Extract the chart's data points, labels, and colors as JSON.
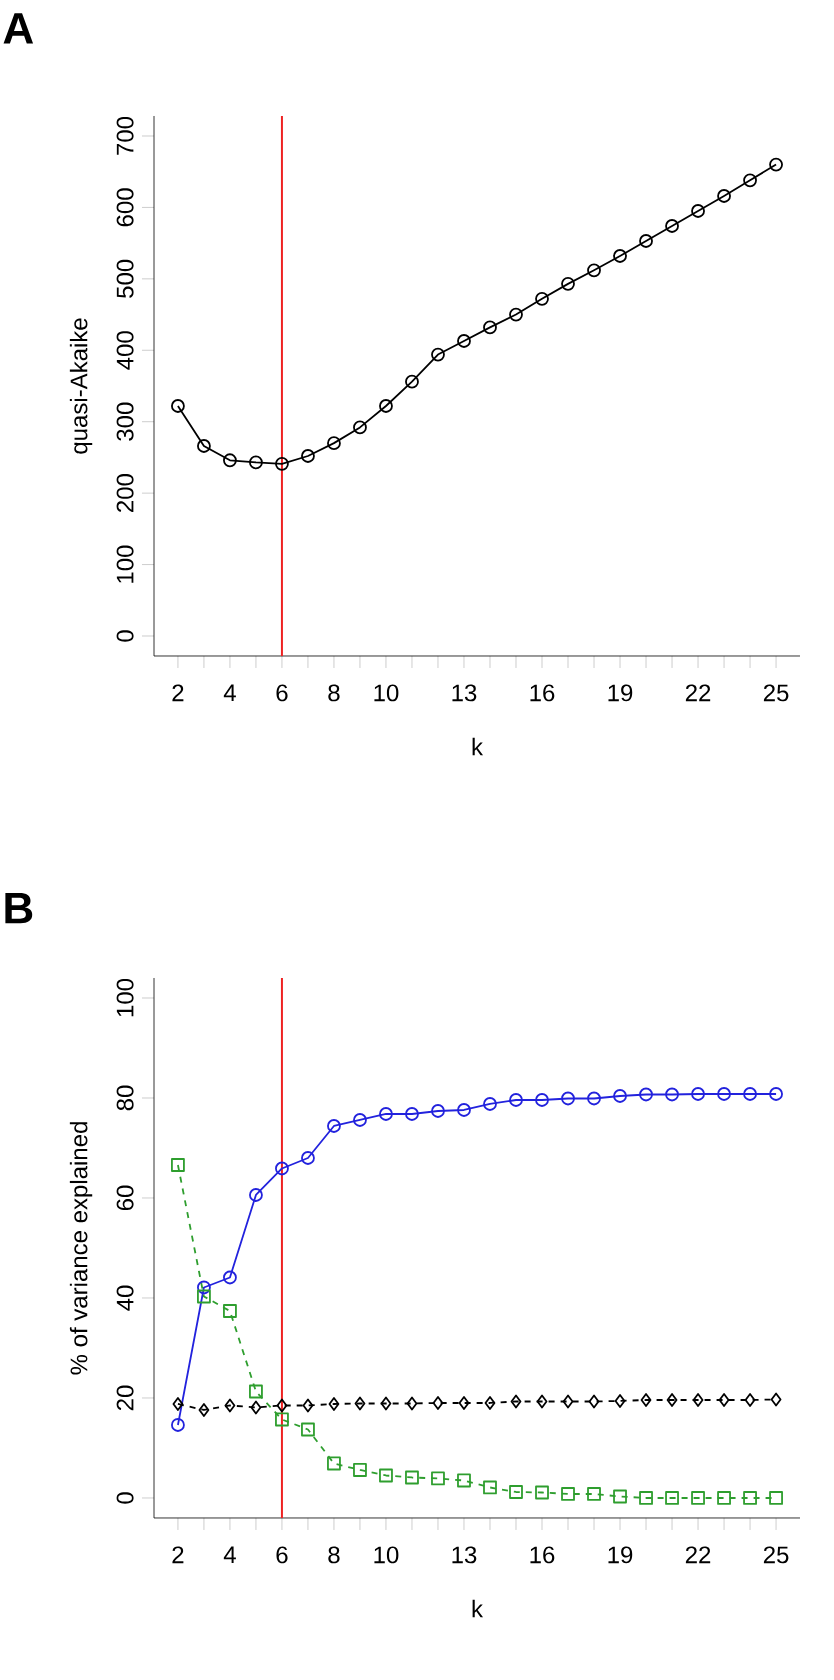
{
  "chart_data": [
    {
      "type": "line",
      "title": "A",
      "xlabel": "k",
      "ylabel": "quasi-Akaike",
      "x": [
        2,
        3,
        4,
        5,
        6,
        7,
        8,
        9,
        10,
        11,
        12,
        13,
        14,
        15,
        16,
        17,
        18,
        19,
        20,
        21,
        22,
        23,
        24,
        25
      ],
      "series": [
        {
          "color": "#000000",
          "marker": "circle",
          "line_style": "solid",
          "values": [
            322,
            266,
            246,
            243,
            241,
            252,
            270,
            292,
            322,
            356,
            394,
            413,
            432,
            450,
            472,
            493,
            512,
            532,
            553,
            574,
            595,
            616,
            638,
            660
          ]
        }
      ],
      "xlim": [
        1.08,
        25.92
      ],
      "ylim": [
        -28,
        728
      ],
      "xticks": [
        2,
        {
          "value": 3,
          "label": null
        },
        4,
        {
          "value": 5,
          "label": null
        },
        6,
        {
          "value": 7,
          "label": null
        },
        8,
        {
          "value": 9,
          "label": null
        },
        10,
        {
          "value": 11,
          "label": null
        },
        {
          "value": 12,
          "label": null
        },
        13,
        {
          "value": 14,
          "label": null
        },
        {
          "value": 15,
          "label": null
        },
        16,
        {
          "value": 17,
          "label": null
        },
        {
          "value": 18,
          "label": null
        },
        19,
        {
          "value": 20,
          "label": null
        },
        {
          "value": 21,
          "label": null
        },
        22,
        {
          "value": 23,
          "label": null
        },
        {
          "value": 24,
          "label": null
        },
        25
      ],
      "yticks": [
        0,
        100,
        200,
        300,
        400,
        500,
        600,
        700
      ],
      "ref_lines": [
        {
          "axis": "x",
          "value": 6,
          "color": "#ee2222"
        }
      ]
    },
    {
      "type": "line",
      "title": "B",
      "xlabel": "k",
      "ylabel": "% of variance explained",
      "x": [
        2,
        3,
        4,
        5,
        6,
        7,
        8,
        9,
        10,
        11,
        12,
        13,
        14,
        15,
        16,
        17,
        18,
        19,
        20,
        21,
        22,
        23,
        24,
        25
      ],
      "series": [
        {
          "color": "#2222dd",
          "marker": "circle",
          "line_style": "solid",
          "values": [
            14.6,
            42.1,
            44.1,
            60.6,
            65.9,
            68.0,
            74.4,
            75.6,
            76.8,
            76.8,
            77.4,
            77.6,
            78.8,
            79.6,
            79.6,
            79.9,
            79.9,
            80.4,
            80.7,
            80.7,
            80.8,
            80.8,
            80.8,
            80.8
          ]
        },
        {
          "color": "#000000",
          "marker": "diamond",
          "line_style": "dashed",
          "values": [
            18.8,
            17.6,
            18.5,
            18.1,
            18.5,
            18.5,
            18.8,
            18.9,
            18.9,
            18.9,
            19.0,
            19.0,
            19.0,
            19.3,
            19.3,
            19.3,
            19.3,
            19.4,
            19.6,
            19.6,
            19.6,
            19.6,
            19.6,
            19.7
          ]
        },
        {
          "color": "#2e9e2e",
          "marker": "square",
          "line_style": "dashed",
          "values": [
            66.6,
            40.3,
            37.4,
            21.3,
            15.7,
            13.7,
            6.9,
            5.6,
            4.5,
            4.1,
            3.9,
            3.5,
            2.1,
            1.2,
            1.1,
            0.8,
            0.8,
            0.3,
            0,
            0,
            0,
            0,
            0,
            0
          ]
        }
      ],
      "xlim": [
        1.08,
        25.92
      ],
      "ylim": [
        -4,
        104
      ],
      "xticks": [
        2,
        {
          "value": 3,
          "label": null
        },
        4,
        {
          "value": 5,
          "label": null
        },
        6,
        {
          "value": 7,
          "label": null
        },
        8,
        {
          "value": 9,
          "label": null
        },
        10,
        {
          "value": 11,
          "label": null
        },
        {
          "value": 12,
          "label": null
        },
        13,
        {
          "value": 14,
          "label": null
        },
        {
          "value": 15,
          "label": null
        },
        16,
        {
          "value": 17,
          "label": null
        },
        {
          "value": 18,
          "label": null
        },
        19,
        {
          "value": 20,
          "label": null
        },
        {
          "value": 21,
          "label": null
        },
        22,
        {
          "value": 23,
          "label": null
        },
        {
          "value": 24,
          "label": null
        },
        25
      ],
      "yticks": [
        0,
        20,
        40,
        60,
        80,
        100
      ],
      "ref_lines": [
        {
          "axis": "x",
          "value": 6,
          "color": "#ee2222"
        }
      ]
    }
  ]
}
